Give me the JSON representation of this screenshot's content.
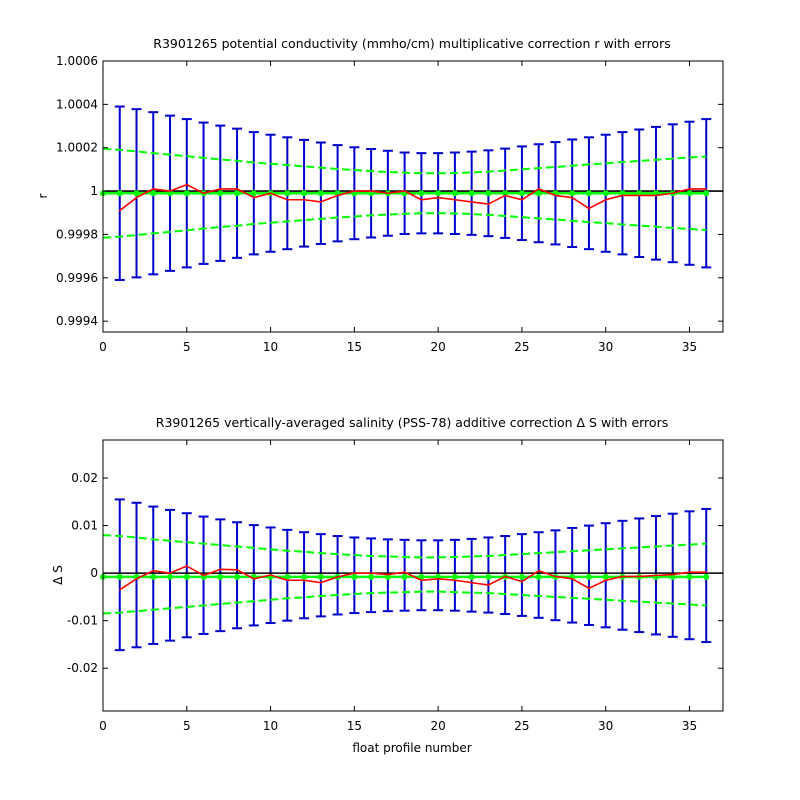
{
  "figure": {
    "xlabel": "float profile number"
  },
  "colors": {
    "correction": "#ff0000",
    "fit": "#00ff00",
    "error_bars": "#0000cc",
    "axis": "#000000",
    "zero_line": "#000000"
  },
  "chart_data": [
    {
      "type": "line",
      "title": "R3901265 potential conductivity (mmho/cm) multiplicative correction r with errors",
      "xlabel": "",
      "ylabel": "r",
      "xlim": [
        0,
        37
      ],
      "ylim": [
        0.99935,
        1.0006
      ],
      "xticks": [
        0,
        5,
        10,
        15,
        20,
        25,
        30,
        35
      ],
      "yticks": [
        0.9994,
        0.9996,
        0.9998,
        1,
        1.0002,
        1.0004,
        1.0006
      ],
      "ytick_labels": [
        "0.9994",
        "0.9996",
        "0.9998",
        "1",
        "1.0002",
        "1.0004",
        "1.0006"
      ],
      "reference_line": 1,
      "x": [
        0,
        1,
        2,
        3,
        4,
        5,
        6,
        7,
        8,
        9,
        10,
        11,
        12,
        13,
        14,
        15,
        16,
        17,
        18,
        19,
        20,
        21,
        22,
        23,
        24,
        25,
        26,
        27,
        28,
        29,
        30,
        31,
        32,
        33,
        34,
        35,
        36
      ],
      "series": [
        {
          "role": "correction",
          "values": [
            null,
            0.99991,
            0.99997,
            1.00001,
            1.0,
            1.00003,
            0.99999,
            1.00001,
            1.00001,
            0.99997,
            0.99999,
            0.99996,
            0.99996,
            0.99995,
            0.99998,
            1.0,
            1.0,
            0.99999,
            1.0,
            0.99996,
            0.99997,
            0.99996,
            0.99995,
            0.99994,
            0.99998,
            0.99996,
            1.00001,
            0.99998,
            0.99997,
            0.99992,
            0.99996,
            0.99998,
            0.99998,
            0.99998,
            0.99999,
            1.00001,
            1.00001
          ]
        },
        {
          "role": "fit",
          "values": [
            0.99999,
            0.99999,
            0.99999,
            0.99999,
            0.99999,
            0.99999,
            0.99999,
            0.99999,
            0.99999,
            0.99999,
            0.99999,
            0.99999,
            0.99999,
            0.99999,
            0.99999,
            0.99999,
            0.99999,
            0.99999,
            0.99999,
            0.99999,
            0.99999,
            0.99999,
            0.99999,
            0.99999,
            0.99999,
            0.99999,
            0.99999,
            0.99999,
            0.99999,
            0.99999,
            0.99999,
            0.99999,
            0.99999,
            0.99999,
            0.99999,
            0.99999,
            0.99999
          ],
          "upper": [
            1.000195,
            1.00019,
            1.000183,
            1.000175,
            1.000168,
            1.000161,
            1.000153,
            1.000146,
            1.00014,
            1.000132,
            1.000126,
            1.00012,
            1.000114,
            1.000108,
            1.000102,
            1.000097,
            1.000092,
            1.000088,
            1.000085,
            1.000082,
            1.000082,
            1.000083,
            1.000086,
            1.00009,
            1.000095,
            1.0001,
            1.000106,
            1.000111,
            1.000117,
            1.000123,
            1.000128,
            1.000134,
            1.000139,
            1.000144,
            1.00015,
            1.000155,
            1.00016
          ],
          "lower": [
            0.999785,
            0.99979,
            0.999797,
            0.999805,
            0.999812,
            0.999819,
            0.999827,
            0.999834,
            0.99984,
            0.999848,
            0.999854,
            0.99986,
            0.999866,
            0.999872,
            0.999878,
            0.999883,
            0.999888,
            0.999892,
            0.999895,
            0.999898,
            0.999898,
            0.999897,
            0.999894,
            0.99989,
            0.999885,
            0.99988,
            0.999874,
            0.999869,
            0.999863,
            0.999857,
            0.999852,
            0.999846,
            0.999841,
            0.999836,
            0.99983,
            0.999825,
            0.99982
          ]
        },
        {
          "role": "error_bars",
          "upper": [
            null,
            1.00039,
            1.000378,
            1.000364,
            1.000348,
            1.000332,
            1.000316,
            1.000302,
            1.000288,
            1.000272,
            1.00026,
            1.000248,
            1.000236,
            1.000224,
            1.000212,
            1.000202,
            1.000194,
            1.000186,
            1.000178,
            1.000175,
            1.000175,
            1.000178,
            1.000182,
            1.000188,
            1.000196,
            1.000206,
            1.000216,
            1.000226,
            1.000238,
            1.000248,
            1.00026,
            1.000272,
            1.000284,
            1.000296,
            1.000308,
            1.00032,
            1.000332
          ],
          "lower": [
            null,
            0.99959,
            0.999602,
            0.999616,
            0.999632,
            0.999648,
            0.999664,
            0.999678,
            0.999692,
            0.999708,
            0.99972,
            0.999732,
            0.999744,
            0.999756,
            0.999768,
            0.999778,
            0.999786,
            0.999794,
            0.999802,
            0.999805,
            0.999805,
            0.999802,
            0.999798,
            0.999792,
            0.999784,
            0.999774,
            0.999764,
            0.999754,
            0.999742,
            0.999732,
            0.99972,
            0.999708,
            0.999696,
            0.999684,
            0.999672,
            0.99966,
            0.999648
          ]
        }
      ]
    },
    {
      "type": "line",
      "title": "R3901265 vertically-averaged salinity (PSS-78) additive correction Δ S with errors",
      "xlabel": "float profile number",
      "ylabel": "Δ S",
      "xlim": [
        0,
        37
      ],
      "ylim": [
        -0.029,
        0.028
      ],
      "xticks": [
        0,
        5,
        10,
        15,
        20,
        25,
        30,
        35
      ],
      "yticks": [
        -0.02,
        -0.01,
        0,
        0.01,
        0.02
      ],
      "ytick_labels": [
        "-0.02",
        "-0.01",
        "0",
        "0.01",
        "0.02"
      ],
      "reference_line": 0,
      "x": [
        0,
        1,
        2,
        3,
        4,
        5,
        6,
        7,
        8,
        9,
        10,
        11,
        12,
        13,
        14,
        15,
        16,
        17,
        18,
        19,
        20,
        21,
        22,
        23,
        24,
        25,
        26,
        27,
        28,
        29,
        30,
        31,
        32,
        33,
        34,
        35,
        36
      ],
      "series": [
        {
          "role": "correction",
          "values": [
            null,
            -0.0035,
            -0.0012,
            0.0005,
            0.0,
            0.0015,
            -0.0005,
            0.0008,
            0.0007,
            -0.0012,
            -0.0004,
            -0.0015,
            -0.0015,
            -0.002,
            -0.0008,
            0.0,
            0.0,
            -0.0003,
            0.0002,
            -0.0015,
            -0.0012,
            -0.0015,
            -0.002,
            -0.0025,
            -0.0007,
            -0.0018,
            0.0005,
            -0.0007,
            -0.0012,
            -0.0032,
            -0.0015,
            -0.0007,
            -0.0007,
            -0.0005,
            -0.0003,
            0.0002,
            0.0002
          ]
        },
        {
          "role": "fit",
          "values": [
            -0.0008,
            -0.0008,
            -0.0008,
            -0.0008,
            -0.0008,
            -0.0008,
            -0.0008,
            -0.0008,
            -0.0008,
            -0.0008,
            -0.0008,
            -0.0008,
            -0.0008,
            -0.0008,
            -0.0008,
            -0.0008,
            -0.0008,
            -0.0008,
            -0.0008,
            -0.0008,
            -0.0008,
            -0.0008,
            -0.0008,
            -0.0008,
            -0.0008,
            -0.0008,
            -0.0008,
            -0.0008,
            -0.0008,
            -0.0008,
            -0.0008,
            -0.0008,
            -0.0008,
            -0.0008,
            -0.0008,
            -0.0008,
            -0.0008
          ],
          "upper": [
            0.008,
            0.0078,
            0.0075,
            0.0071,
            0.0068,
            0.0065,
            0.0062,
            0.0059,
            0.0056,
            0.0053,
            0.005,
            0.0047,
            0.0045,
            0.0042,
            0.004,
            0.0038,
            0.0036,
            0.0035,
            0.0034,
            0.0033,
            0.0033,
            0.0034,
            0.0035,
            0.0036,
            0.0038,
            0.004,
            0.0042,
            0.0044,
            0.0046,
            0.0048,
            0.005,
            0.0052,
            0.0054,
            0.0056,
            0.0058,
            0.006,
            0.0062
          ],
          "lower": [
            -0.0085,
            -0.0083,
            -0.008,
            -0.0077,
            -0.0074,
            -0.0071,
            -0.0068,
            -0.0065,
            -0.0062,
            -0.0059,
            -0.0056,
            -0.0053,
            -0.0051,
            -0.0048,
            -0.0046,
            -0.0044,
            -0.0042,
            -0.0041,
            -0.004,
            -0.0039,
            -0.0039,
            -0.004,
            -0.0041,
            -0.0042,
            -0.0044,
            -0.0046,
            -0.0048,
            -0.005,
            -0.0052,
            -0.0054,
            -0.0056,
            -0.0058,
            -0.006,
            -0.0062,
            -0.0064,
            -0.0066,
            -0.0068
          ]
        },
        {
          "role": "error_bars",
          "upper": [
            null,
            0.0155,
            0.0148,
            0.014,
            0.0133,
            0.0126,
            0.0119,
            0.0113,
            0.0107,
            0.0101,
            0.0096,
            0.0091,
            0.0086,
            0.0082,
            0.0078,
            0.0075,
            0.0073,
            0.0071,
            0.007,
            0.0069,
            0.0069,
            0.007,
            0.0072,
            0.0075,
            0.0078,
            0.0082,
            0.0086,
            0.009,
            0.0095,
            0.01,
            0.0105,
            0.011,
            0.0115,
            0.012,
            0.0125,
            0.013,
            0.0135
          ],
          "lower": [
            null,
            -0.0162,
            -0.0156,
            -0.0149,
            -0.0142,
            -0.0135,
            -0.0128,
            -0.0122,
            -0.0116,
            -0.011,
            -0.0105,
            -0.01,
            -0.0095,
            -0.0091,
            -0.0087,
            -0.0084,
            -0.0082,
            -0.008,
            -0.0079,
            -0.0078,
            -0.0078,
            -0.0079,
            -0.0081,
            -0.0083,
            -0.0086,
            -0.009,
            -0.0094,
            -0.0099,
            -0.0104,
            -0.0109,
            -0.0114,
            -0.0119,
            -0.0124,
            -0.0129,
            -0.0134,
            -0.0139,
            -0.0145
          ]
        }
      ]
    }
  ]
}
